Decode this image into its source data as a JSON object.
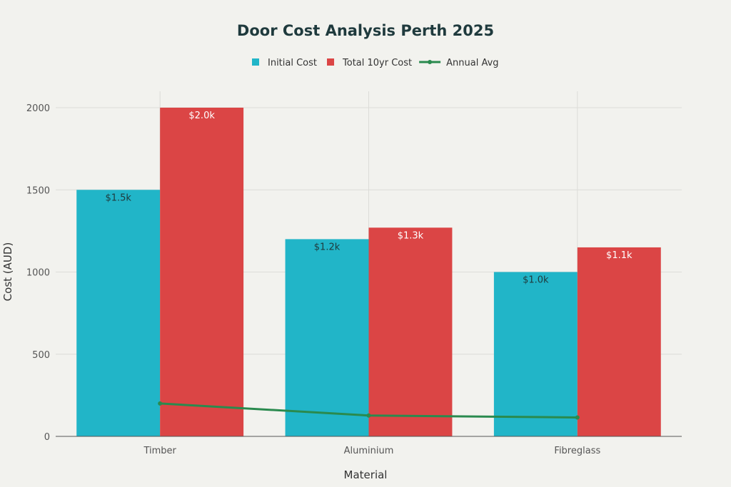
{
  "chart_data": {
    "type": "bar",
    "title": "Door Cost Analysis Perth 2025",
    "xlabel": "Material",
    "ylabel": "Cost (AUD)",
    "categories": [
      "Timber",
      "Aluminium",
      "Fibreglass"
    ],
    "ylim": [
      0,
      2100
    ],
    "yticks": [
      0,
      500,
      1000,
      1500,
      2000
    ],
    "grid": true,
    "legend_position": "top-center",
    "series": [
      {
        "name": "Initial Cost",
        "type": "bar",
        "color": "#21b5c8",
        "values": [
          1500,
          1200,
          1000
        ],
        "labels": [
          "$1.5k",
          "$1.2k",
          "$1.0k"
        ],
        "label_color": "#1f3a3d"
      },
      {
        "name": "Total 10yr Cost",
        "type": "bar",
        "color": "#db4545",
        "values": [
          2000,
          1270,
          1150
        ],
        "labels": [
          "$2.0k",
          "$1.3k",
          "$1.1k"
        ],
        "label_color": "#ffffff"
      },
      {
        "name": "Annual Avg",
        "type": "line",
        "color": "#2a8a4e",
        "values": [
          200,
          127,
          115
        ]
      }
    ]
  }
}
